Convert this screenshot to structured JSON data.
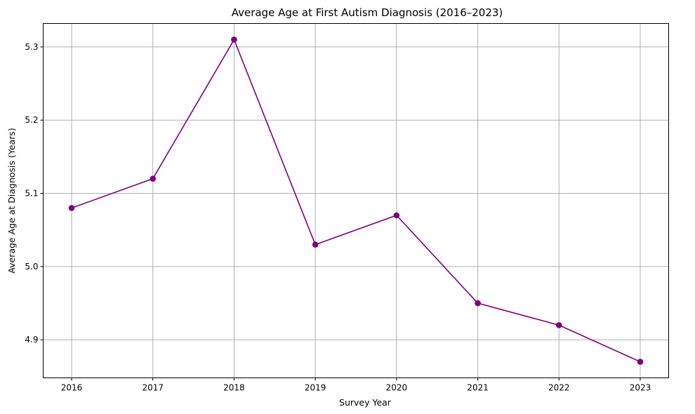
{
  "chart_data": {
    "type": "line",
    "title": "Average Age at First Autism Diagnosis (2016–2023)",
    "xlabel": "Survey Year",
    "ylabel": "Average Age at Diagnosis (Years)",
    "x": [
      2016,
      2017,
      2018,
      2019,
      2020,
      2021,
      2022,
      2023
    ],
    "x_tick_labels": [
      "2016",
      "2017",
      "2018",
      "2019",
      "2020",
      "2021",
      "2022",
      "2023"
    ],
    "xlim": [
      2015.65,
      2023.35
    ],
    "ylim": [
      4.848,
      5.332
    ],
    "y_ticks": [
      4.9,
      5.0,
      5.1,
      5.2,
      5.3
    ],
    "y_tick_labels": [
      "4.9",
      "5.0",
      "5.1",
      "5.2",
      "5.3"
    ],
    "grid": true,
    "series": [
      {
        "values": [
          5.08,
          5.12,
          5.31,
          5.03,
          5.07,
          4.95,
          4.92,
          4.87
        ],
        "color": "#800080",
        "marker": "circle"
      }
    ]
  }
}
